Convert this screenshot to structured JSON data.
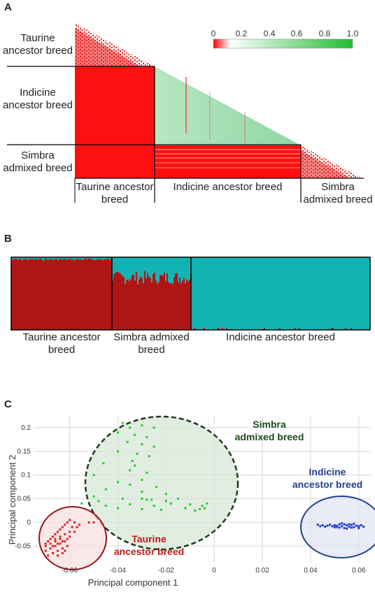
{
  "panels": {
    "a": {
      "label": "A",
      "row_labels": [
        "Taurine ancestor breed",
        "Indicine ancestor breed",
        "Simbra admixed breed"
      ],
      "col_labels": [
        "Taurine ancestor breed",
        "Indicine ancestor breed",
        "Simbra admixed breed"
      ],
      "colorbar": {
        "ticks": [
          "0",
          "0.2",
          "0.4",
          "0.6",
          "0.8",
          "1.0"
        ],
        "min_color": "#ff0000",
        "mid_color": "#ffffff",
        "max_color": "#22bb33"
      }
    },
    "b": {
      "label": "B",
      "groups": [
        "Taurine ancestor breed",
        "Simbra admixed breed",
        "Indicine ancestor breed"
      ],
      "colors": {
        "cluster1": "#b01515",
        "cluster2": "#12b3b3"
      }
    },
    "c": {
      "label": "C",
      "cluster_labels": {
        "simbra": {
          "line1": "Simbra",
          "line2": "admixed breed",
          "color": "#1a4d1a"
        },
        "indicine": {
          "line1": "Indicine",
          "line2": "ancestor breed",
          "color": "#1f3f8f"
        },
        "taurine": {
          "line1": "Taurine",
          "line2": "ancestor breed",
          "color": "#c01a1a"
        }
      }
    }
  },
  "chart_data": [
    {
      "type": "heatmap",
      "title": "",
      "groups": [
        "Taurine ancestor breed",
        "Indicine ancestor breed",
        "Simbra admixed breed"
      ],
      "colorbar_range": [
        0,
        1.0
      ],
      "block_mean_values": [
        [
          0.05,
          null,
          null
        ],
        [
          0.0,
          0.25,
          null
        ],
        [
          0.0,
          0.05,
          0.1
        ]
      ]
    },
    {
      "type": "bar",
      "title": "",
      "categories": [
        "Taurine ancestor breed",
        "Simbra admixed breed",
        "Indicine ancestor breed"
      ],
      "series": [
        {
          "values": [
            0.98,
            0.72,
            0.02
          ]
        },
        {
          "values": [
            0.02,
            0.28,
            0.98
          ]
        }
      ],
      "ylim": [
        0,
        1
      ]
    },
    {
      "type": "scatter",
      "title": "",
      "xlabel": "Principal component 1",
      "ylabel": "Principal component 2",
      "xlim": [
        -0.075,
        0.065
      ],
      "ylim": [
        -0.085,
        0.225
      ],
      "xticks": [
        "-0.06",
        "-0.04",
        "-0.02",
        "0",
        "0.02",
        "0.04",
        "0.06"
      ],
      "yticks": [
        "-0.05",
        "0",
        "0.05",
        "0.1",
        "0.15",
        "0.2"
      ],
      "series": [
        {
          "name": "Taurine ancestor breed",
          "color": "#dd2222",
          "points": [
            [
              -0.07,
              -0.045
            ],
            [
              -0.069,
              -0.04
            ],
            [
              -0.068,
              -0.035
            ],
            [
              -0.067,
              -0.03
            ],
            [
              -0.066,
              -0.025
            ],
            [
              -0.065,
              -0.02
            ],
            [
              -0.064,
              -0.015
            ],
            [
              -0.063,
              -0.01
            ],
            [
              -0.062,
              -0.005
            ],
            [
              -0.061,
              0.0
            ],
            [
              -0.06,
              0.005
            ],
            [
              -0.059,
              -0.01
            ],
            [
              -0.058,
              0.0
            ],
            [
              -0.07,
              -0.06
            ],
            [
              -0.068,
              -0.055
            ],
            [
              -0.066,
              -0.05
            ],
            [
              -0.064,
              -0.045
            ],
            [
              -0.062,
              -0.04
            ],
            [
              -0.069,
              -0.07
            ],
            [
              -0.067,
              -0.065
            ],
            [
              -0.065,
              -0.06
            ],
            [
              -0.063,
              -0.055
            ],
            [
              -0.061,
              -0.05
            ],
            [
              -0.066,
              -0.035
            ],
            [
              -0.064,
              -0.03
            ],
            [
              -0.062,
              -0.025
            ],
            [
              -0.06,
              -0.02
            ],
            [
              -0.068,
              -0.045
            ],
            [
              -0.066,
              -0.04
            ],
            [
              -0.064,
              -0.035
            ],
            [
              -0.065,
              -0.07
            ],
            [
              -0.063,
              -0.065
            ],
            [
              -0.057,
              -0.01
            ],
            [
              -0.056,
              -0.005
            ],
            [
              -0.06,
              -0.03
            ],
            [
              -0.058,
              -0.02
            ],
            [
              -0.052,
              0.0
            ],
            [
              -0.05,
              0.0
            ],
            [
              -0.067,
              -0.05
            ],
            [
              -0.065,
              -0.045
            ],
            [
              -0.063,
              -0.04
            ],
            [
              -0.061,
              -0.035
            ],
            [
              -0.062,
              -0.06
            ],
            [
              -0.07,
              -0.05
            ]
          ]
        },
        {
          "name": "Simbra admixed breed",
          "color": "#22cc22",
          "points": [
            [
              -0.038,
              0.21
            ],
            [
              -0.03,
              0.205
            ],
            [
              -0.035,
              0.2
            ],
            [
              -0.025,
              0.2
            ],
            [
              -0.04,
              0.19
            ],
            [
              -0.033,
              0.185
            ],
            [
              -0.028,
              0.18
            ],
            [
              -0.036,
              0.17
            ],
            [
              -0.03,
              0.165
            ],
            [
              -0.025,
              0.16
            ],
            [
              -0.04,
              0.15
            ],
            [
              -0.032,
              0.145
            ],
            [
              -0.027,
              0.14
            ],
            [
              -0.034,
              0.13
            ],
            [
              -0.046,
              0.125
            ],
            [
              -0.035,
              0.11
            ],
            [
              -0.028,
              0.105
            ],
            [
              -0.05,
              0.1
            ],
            [
              -0.03,
              0.09
            ],
            [
              -0.04,
              0.085
            ],
            [
              -0.035,
              0.08
            ],
            [
              -0.024,
              0.075
            ],
            [
              -0.045,
              0.07
            ],
            [
              -0.03,
              0.065
            ],
            [
              -0.02,
              0.06
            ],
            [
              -0.05,
              0.055
            ],
            [
              -0.038,
              0.05
            ],
            [
              -0.028,
              0.048
            ],
            [
              -0.02,
              0.045
            ],
            [
              -0.015,
              0.05
            ],
            [
              -0.055,
              0.04
            ],
            [
              -0.045,
              0.035
            ],
            [
              -0.035,
              0.038
            ],
            [
              -0.025,
              0.035
            ],
            [
              -0.018,
              0.04
            ],
            [
              -0.01,
              0.038
            ],
            [
              -0.04,
              0.03
            ],
            [
              -0.03,
              0.028
            ],
            [
              -0.022,
              0.027
            ],
            [
              -0.012,
              0.03
            ],
            [
              -0.005,
              0.035
            ],
            [
              -0.003,
              0.04
            ],
            [
              -0.004,
              0.03
            ],
            [
              -0.008,
              0.025
            ],
            [
              -0.006,
              0.028
            ],
            [
              -0.048,
              0.045
            ],
            [
              -0.033,
              0.12
            ],
            [
              -0.03,
              0.05
            ],
            [
              -0.026,
              0.048
            ]
          ]
        },
        {
          "name": "Indicine ancestor breed",
          "color": "#1f3fcf",
          "points": [
            [
              0.043,
              -0.005
            ],
            [
              0.045,
              -0.006
            ],
            [
              0.047,
              -0.007
            ],
            [
              0.049,
              -0.008
            ],
            [
              0.05,
              -0.006
            ],
            [
              0.051,
              -0.01
            ],
            [
              0.052,
              -0.004
            ],
            [
              0.053,
              -0.008
            ],
            [
              0.054,
              -0.012
            ],
            [
              0.055,
              -0.006
            ],
            [
              0.056,
              -0.009
            ],
            [
              0.057,
              -0.005
            ],
            [
              0.058,
              -0.01
            ],
            [
              0.059,
              -0.007
            ],
            [
              0.06,
              -0.008
            ],
            [
              0.061,
              -0.006
            ],
            [
              0.062,
              -0.009
            ],
            [
              0.053,
              -0.002
            ],
            [
              0.055,
              -0.013
            ],
            [
              0.057,
              -0.011
            ],
            [
              0.052,
              -0.011
            ],
            [
              0.05,
              -0.01
            ],
            [
              0.048,
              -0.005
            ],
            [
              0.046,
              -0.009
            ],
            [
              0.054,
              -0.004
            ],
            [
              0.058,
              -0.003
            ],
            [
              0.06,
              -0.012
            ],
            [
              0.044,
              -0.008
            ],
            [
              0.051,
              -0.007
            ],
            [
              0.056,
              -0.004
            ]
          ]
        }
      ]
    }
  ]
}
